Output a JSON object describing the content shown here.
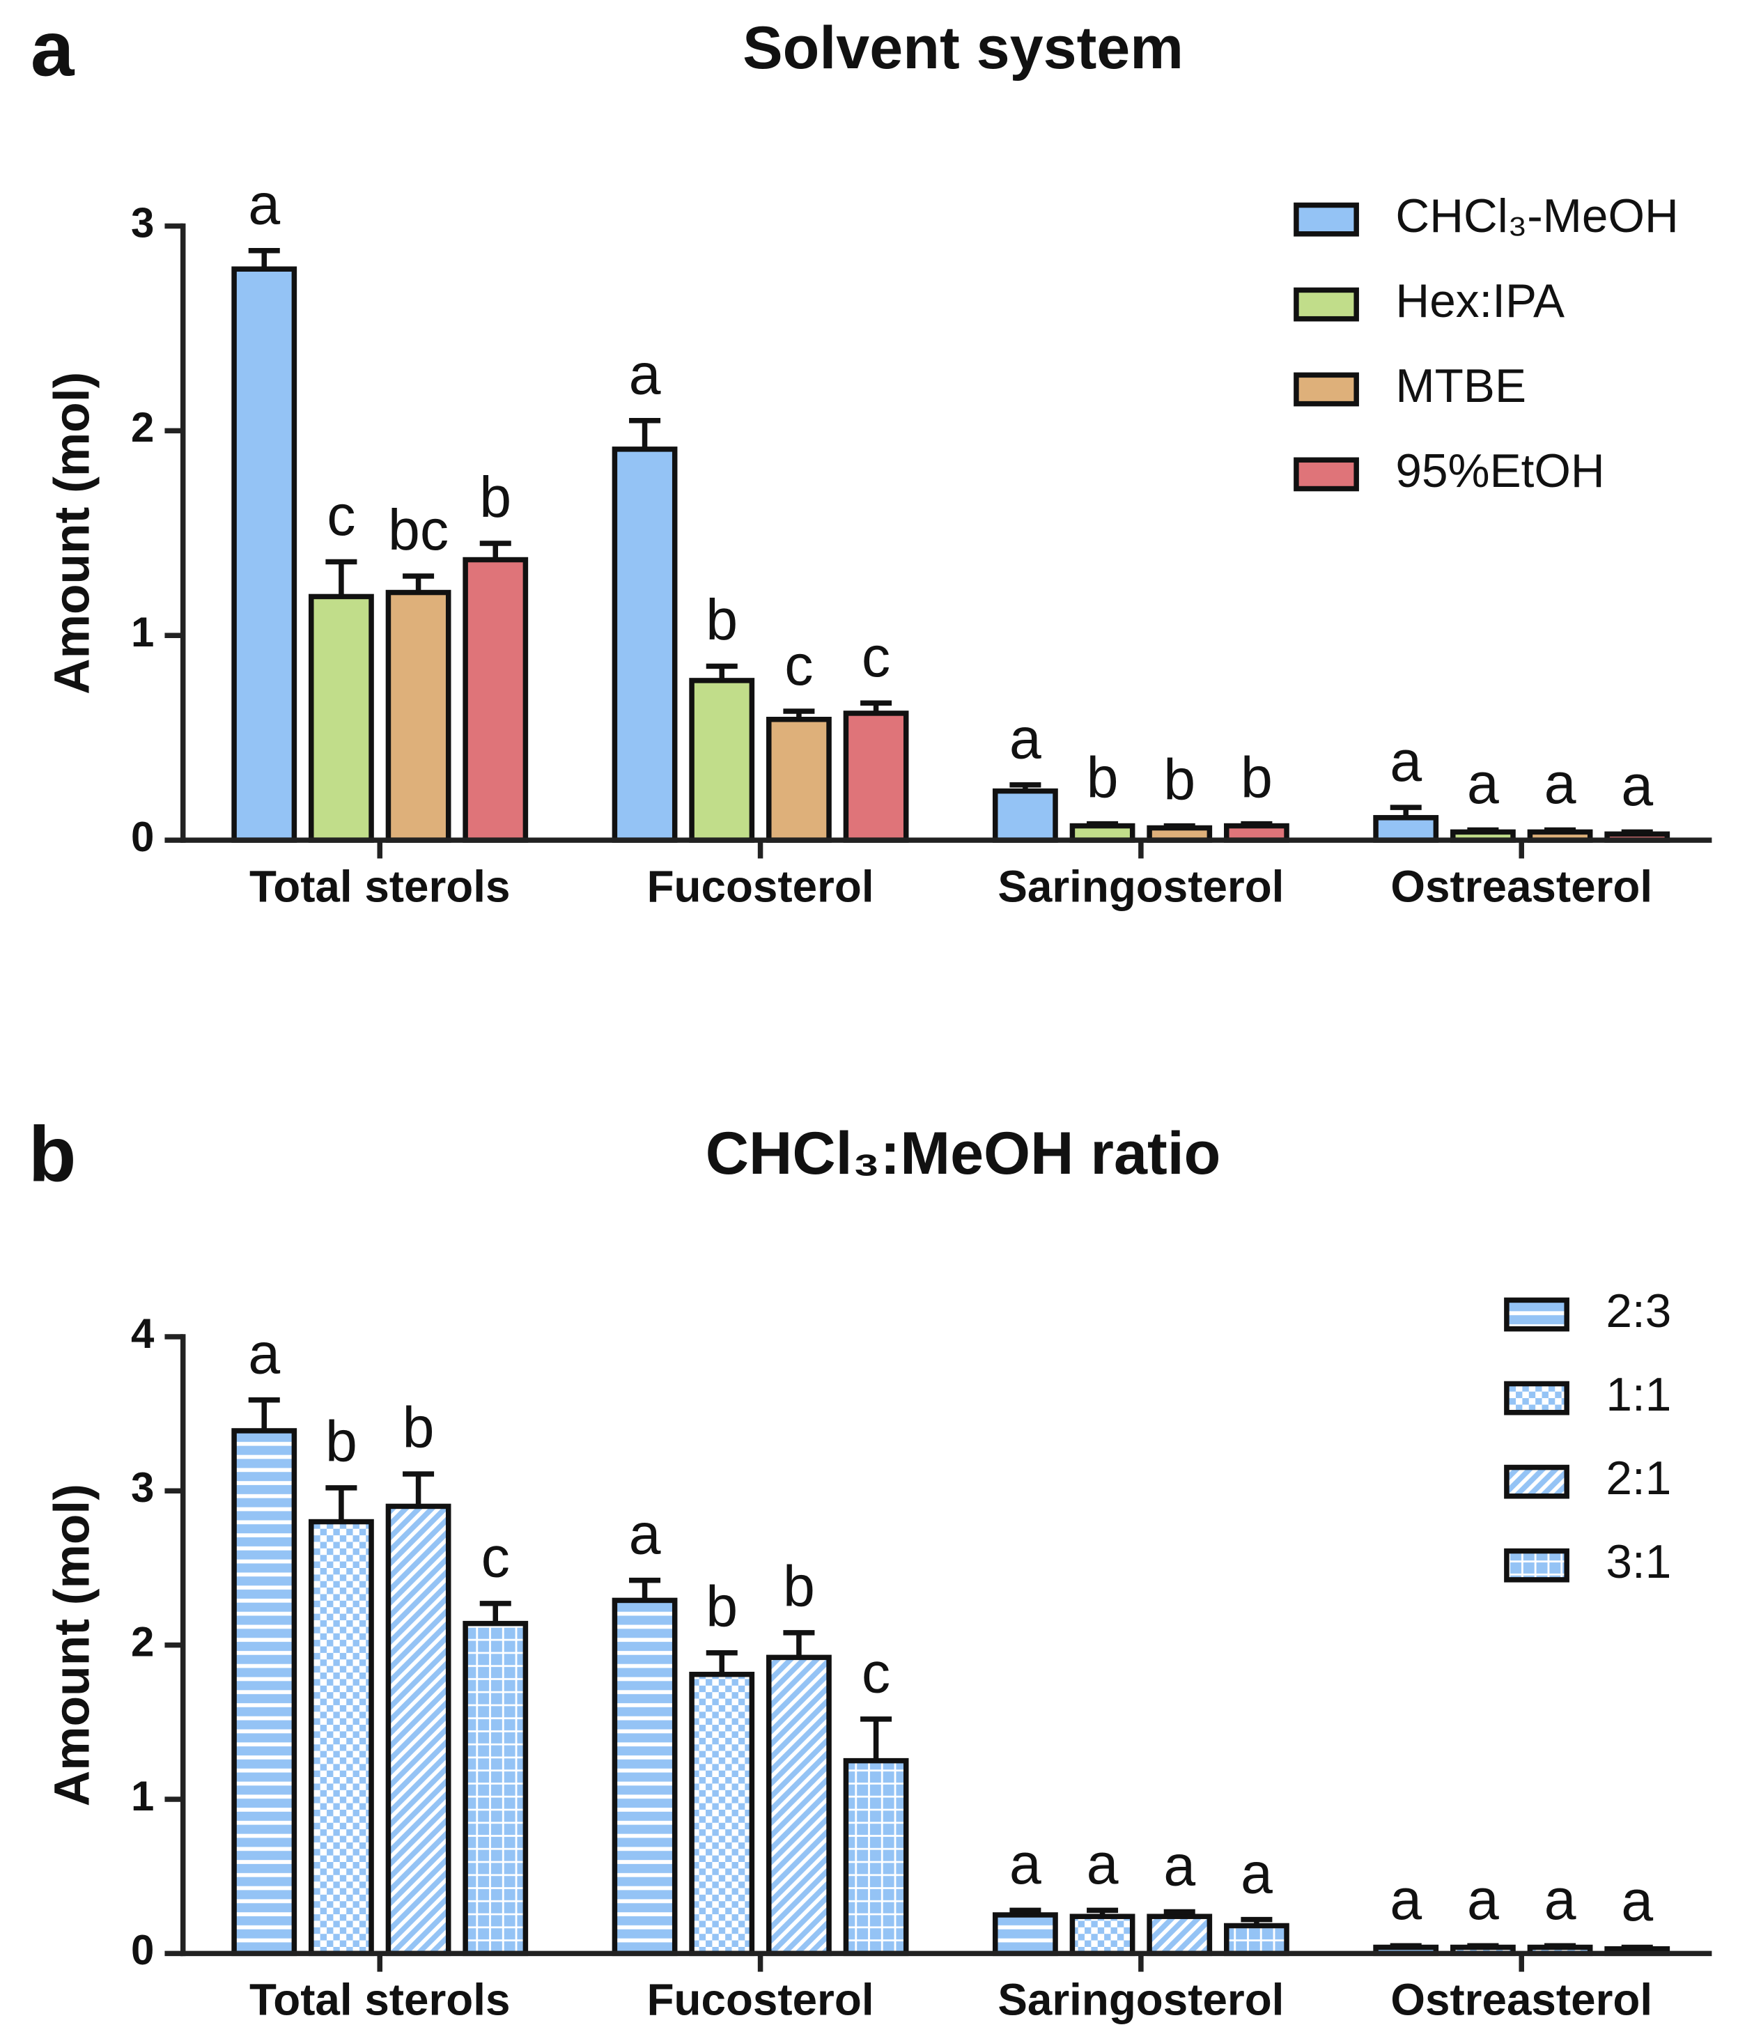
{
  "chart_data": [
    {
      "type": "bar",
      "panel": "a",
      "title": "Solvent system",
      "y_label": "Amount (mol)",
      "categories": [
        "Total sterols",
        "Fucosterol",
        "Saringosterol",
        "Ostreasterol"
      ],
      "ylim": [
        0,
        3
      ],
      "yticks": [
        0,
        1,
        2,
        3
      ],
      "legend": "upper right",
      "series": [
        {
          "name": "CHCl₃-MeOH",
          "color": "#94c3f5",
          "values": [
            2.79,
            1.91,
            0.24,
            0.11
          ],
          "errors": [
            0.09,
            0.14,
            0.03,
            0.05
          ],
          "letters": [
            "a",
            "a",
            "a",
            "a"
          ]
        },
        {
          "name": "Hex:IPA",
          "color": "#c1dd8a",
          "values": [
            1.19,
            0.78,
            0.07,
            0.04
          ],
          "errors": [
            0.17,
            0.07,
            0.01,
            0.01
          ],
          "letters": [
            "c",
            "b",
            "b",
            "a"
          ]
        },
        {
          "name": "MTBE",
          "color": "#deb07a",
          "values": [
            1.21,
            0.59,
            0.06,
            0.04
          ],
          "errors": [
            0.08,
            0.04,
            0.01,
            0.01
          ],
          "letters": [
            "bc",
            "c",
            "b",
            "a"
          ]
        },
        {
          "name": "95%EtOH",
          "color": "#df7479",
          "values": [
            1.37,
            0.62,
            0.07,
            0.03
          ],
          "errors": [
            0.08,
            0.05,
            0.01,
            0.01
          ],
          "letters": [
            "b",
            "c",
            "b",
            "a"
          ]
        }
      ]
    },
    {
      "type": "bar",
      "panel": "b",
      "title": "CHCl₃:MeOH ratio",
      "y_label": "Amount (mol)",
      "categories": [
        "Total sterols",
        "Fucosterol",
        "Saringosterol",
        "Ostreasterol"
      ],
      "ylim": [
        0,
        4
      ],
      "yticks": [
        0,
        1,
        2,
        3,
        4
      ],
      "legend": "upper right",
      "series": [
        {
          "name": "2:3",
          "color": "#94c3f5",
          "pattern": "horizontal",
          "values": [
            3.39,
            2.29,
            0.25,
            0.04
          ],
          "errors": [
            0.2,
            0.13,
            0.03,
            0.01
          ],
          "letters": [
            "a",
            "a",
            "a",
            "a"
          ]
        },
        {
          "name": "1:1",
          "color": "#94c3f5",
          "pattern": "checker",
          "values": [
            2.8,
            1.81,
            0.24,
            0.04
          ],
          "errors": [
            0.22,
            0.14,
            0.04,
            0.01
          ],
          "letters": [
            "b",
            "b",
            "a",
            "a"
          ]
        },
        {
          "name": "2:1",
          "color": "#94c3f5",
          "pattern": "diagonal",
          "values": [
            2.9,
            1.92,
            0.24,
            0.04
          ],
          "errors": [
            0.21,
            0.16,
            0.03,
            0.01
          ],
          "letters": [
            "b",
            "b",
            "a",
            "a"
          ]
        },
        {
          "name": "3:1",
          "color": "#94c3f5",
          "pattern": "grid",
          "values": [
            2.14,
            1.25,
            0.18,
            0.03
          ],
          "errors": [
            0.13,
            0.27,
            0.04,
            0.01
          ],
          "letters": [
            "c",
            "c",
            "a",
            "a"
          ]
        }
      ]
    }
  ]
}
